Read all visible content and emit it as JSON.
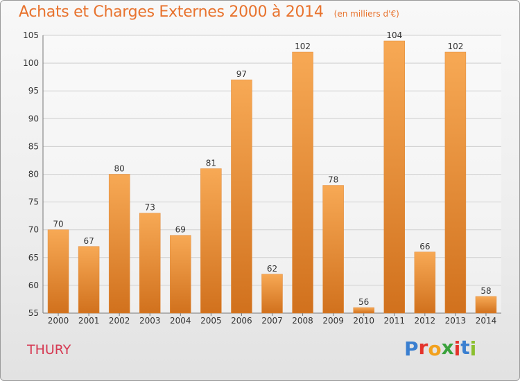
{
  "header": {
    "title": "Achats et Charges Externes 2000 à 2014",
    "subtitle": "(en milliers d'€)"
  },
  "footer": {
    "commune": "THURY",
    "logo_text": "Proxiti",
    "logo_letters": [
      {
        "ch": "P",
        "color": "#3a7fd0"
      },
      {
        "ch": "r",
        "color": "#e4332b"
      },
      {
        "ch": "o",
        "color": "#f2a11e"
      },
      {
        "ch": "x",
        "color": "#3aa23c"
      },
      {
        "ch": "i",
        "color": "#e4332b"
      },
      {
        "ch": "t",
        "color": "#3a7fd0"
      },
      {
        "ch": "i",
        "color": "#8bbf2e"
      }
    ]
  },
  "colors": {
    "bar_top": "#f7a955",
    "bar_bottom": "#d1711d",
    "accent_text": "#e8732e"
  },
  "chart_data": {
    "type": "bar",
    "title": "Achats et Charges Externes 2000 à 2014",
    "subtitle": "(en milliers d'€)",
    "categories": [
      "2000",
      "2001",
      "2002",
      "2003",
      "2004",
      "2005",
      "2006",
      "2007",
      "2008",
      "2009",
      "2010",
      "2011",
      "2012",
      "2013",
      "2014"
    ],
    "values": [
      70,
      67,
      80,
      73,
      69,
      81,
      97,
      62,
      102,
      78,
      56,
      104,
      66,
      102,
      58
    ],
    "ylim": [
      55,
      105
    ],
    "yticks": [
      55,
      60,
      65,
      70,
      75,
      80,
      85,
      90,
      95,
      100,
      105
    ],
    "grid": true,
    "xlabel": "",
    "ylabel": ""
  }
}
